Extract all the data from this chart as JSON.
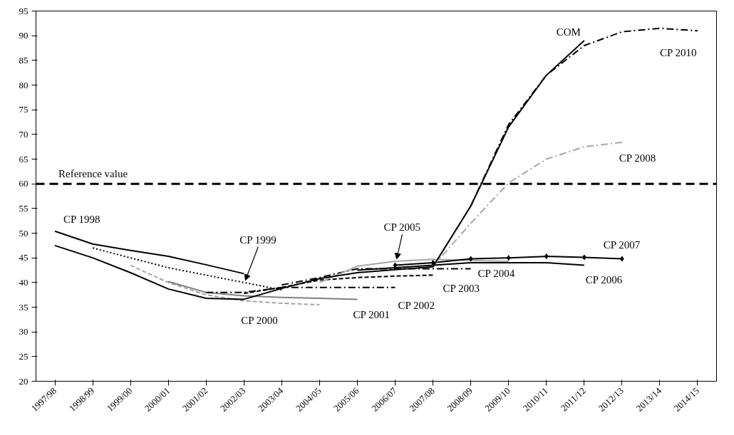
{
  "chart_data": {
    "type": "line",
    "categories": [
      "1997/98",
      "1998/99",
      "1999/00",
      "2000/01",
      "2001/02",
      "2002/03",
      "2003/04",
      "2004/05",
      "2005/06",
      "2006/07",
      "2007/08",
      "2008/09",
      "2009/10",
      "2010/11",
      "2011/12",
      "2012/13",
      "2013/14",
      "2014/15"
    ],
    "ylim": [
      20,
      95
    ],
    "yticks": [
      20,
      25,
      30,
      35,
      40,
      45,
      50,
      55,
      60,
      65,
      70,
      75,
      80,
      85,
      90,
      95
    ],
    "grid": false,
    "marker": "none",
    "series": [
      {
        "name": "CP 1998",
        "color": "#000000",
        "line_style": "solid",
        "values": [
          50.4,
          47.8,
          46.5,
          45.3,
          43.6,
          41.8,
          null,
          null,
          null,
          null,
          null,
          null,
          null,
          null,
          null,
          null,
          null,
          null
        ]
      },
      {
        "name": "CP 1999",
        "color": "#000000",
        "line_style": "dotted",
        "values": [
          null,
          47,
          45,
          43,
          41.5,
          40,
          38.5,
          null,
          null,
          null,
          null,
          null,
          null,
          null,
          null,
          null,
          null,
          null
        ]
      },
      {
        "name": "CP 2000",
        "color": "#a6a6a6",
        "line_style": "dashed",
        "values": [
          null,
          null,
          43.5,
          40,
          37.5,
          36.3,
          35.8,
          35.5,
          null,
          null,
          null,
          null,
          null,
          null,
          null,
          null,
          null,
          null
        ]
      },
      {
        "name": "CP 2001",
        "color": "#808080",
        "line_style": "solid",
        "values": [
          null,
          null,
          null,
          40.2,
          38,
          37.3,
          37,
          36.8,
          36.6,
          null,
          null,
          null,
          null,
          null,
          null,
          null,
          null,
          null
        ]
      },
      {
        "name": "CP 2002",
        "color": "#000000",
        "line_style": "dashdot",
        "values": [
          null,
          null,
          null,
          null,
          38,
          38,
          39,
          39,
          39,
          39,
          null,
          null,
          null,
          null,
          null,
          null,
          null,
          null
        ]
      },
      {
        "name": "CP 2003",
        "color": "#000000",
        "line_style": "dashed",
        "values": [
          null,
          null,
          null,
          null,
          null,
          37.8,
          39,
          40.5,
          41,
          41.3,
          41.5,
          null,
          null,
          null,
          null,
          null,
          null,
          null
        ]
      },
      {
        "name": "CP 2004",
        "color": "#000000",
        "line_style": "dashdot",
        "values": [
          null,
          null,
          null,
          null,
          null,
          null,
          39.5,
          41,
          42.8,
          42.8,
          42.8,
          42.8,
          null,
          null,
          null,
          null,
          null,
          null
        ]
      },
      {
        "name": "CP 2005",
        "color": "#a6a6a6",
        "line_style": "solid",
        "values": [
          null,
          null,
          null,
          null,
          null,
          null,
          null,
          40,
          43.3,
          44.3,
          44.7,
          44.5,
          44.3,
          null,
          null,
          null,
          null,
          null
        ]
      },
      {
        "name": "CP 2006",
        "color": "#000000",
        "line_style": "solid",
        "values": [
          null,
          null,
          null,
          null,
          null,
          null,
          null,
          null,
          42.5,
          43,
          43.5,
          44,
          44,
          44,
          43.5,
          null,
          null,
          null
        ]
      },
      {
        "name": "CP 2007",
        "color": "#000000",
        "line_style": "solid",
        "marker": "diamond",
        "values": [
          null,
          null,
          null,
          null,
          null,
          null,
          null,
          null,
          null,
          43.5,
          44,
          44.8,
          45,
          45.3,
          45.1,
          44.8,
          null,
          null
        ]
      },
      {
        "name": "CP 2008",
        "color": "#a6a6a6",
        "line_style": "dashdot",
        "values": [
          null,
          null,
          null,
          null,
          null,
          null,
          null,
          null,
          null,
          null,
          43.3,
          52,
          60.2,
          65,
          67.5,
          68.4,
          null,
          null
        ]
      },
      {
        "name": "CP 2010",
        "color": "#000000",
        "line_style": "dashdot",
        "values": [
          null,
          null,
          null,
          null,
          null,
          null,
          null,
          null,
          null,
          null,
          null,
          55.5,
          72,
          82,
          88,
          90.8,
          91.5,
          91
        ]
      },
      {
        "name": "COM",
        "color": "#000000",
        "line_style": "solid",
        "values": [
          47.5,
          45,
          42,
          38.7,
          36.8,
          36.6,
          38.8,
          40.8,
          42,
          42.6,
          43.2,
          55.5,
          71.5,
          82,
          89,
          null,
          null,
          null
        ]
      }
    ],
    "ref_lines": [
      {
        "axis": "y",
        "value": 60,
        "label": "Reference value",
        "color": "#000000",
        "line_style": "dashed"
      }
    ]
  }
}
